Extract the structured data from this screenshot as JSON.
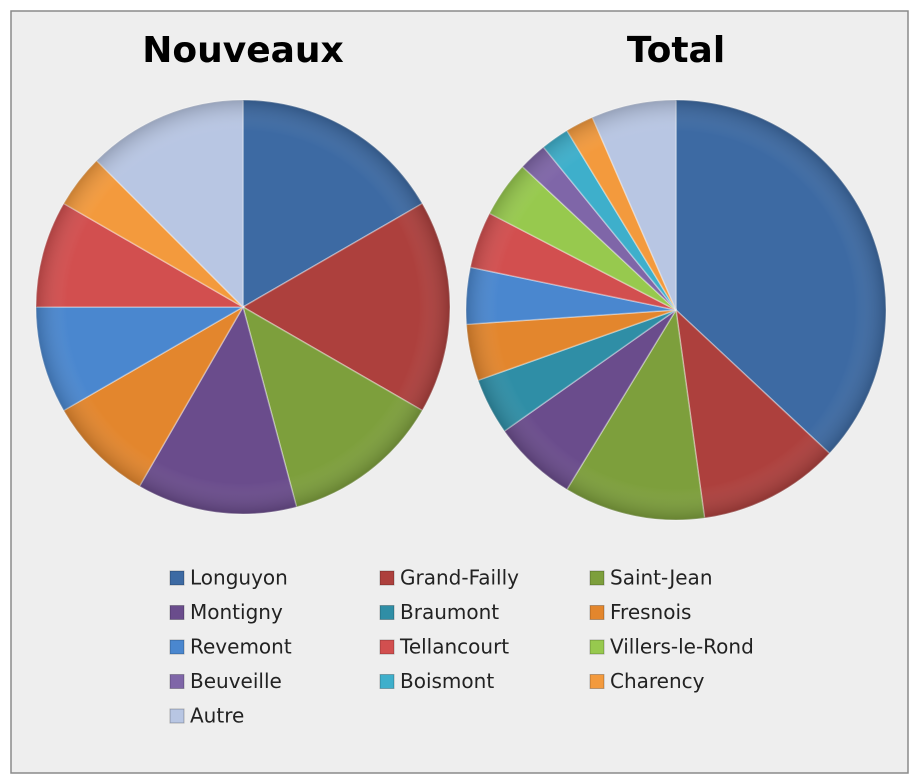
{
  "chart_data": {
    "type": "pie",
    "categories": [
      "Longuyon",
      "Grand-Failly",
      "Saint-Jean",
      "Montigny",
      "Braumont",
      "Fresnois",
      "Revemont",
      "Tellancourt",
      "Villers-le-Rond",
      "Beuveille",
      "Boismont",
      "Charency",
      "Autre"
    ],
    "colors": [
      "#3d6aa3",
      "#ad403d",
      "#7d9f3c",
      "#6a4c8c",
      "#2f8ea6",
      "#e3862d",
      "#4a87cf",
      "#d24f4f",
      "#97c94e",
      "#7f66a8",
      "#3eafcb",
      "#f39a3d",
      "#b8c6e3"
    ],
    "series": [
      {
        "name": "Nouveaux",
        "values": [
          4,
          4,
          3,
          3,
          0,
          2,
          2,
          2,
          0,
          0,
          0,
          1,
          3
        ]
      },
      {
        "name": "Total",
        "values": [
          17,
          5,
          5,
          3,
          2,
          2,
          2,
          2,
          2,
          1,
          1,
          1,
          3
        ]
      }
    ],
    "legend": "bottom"
  }
}
